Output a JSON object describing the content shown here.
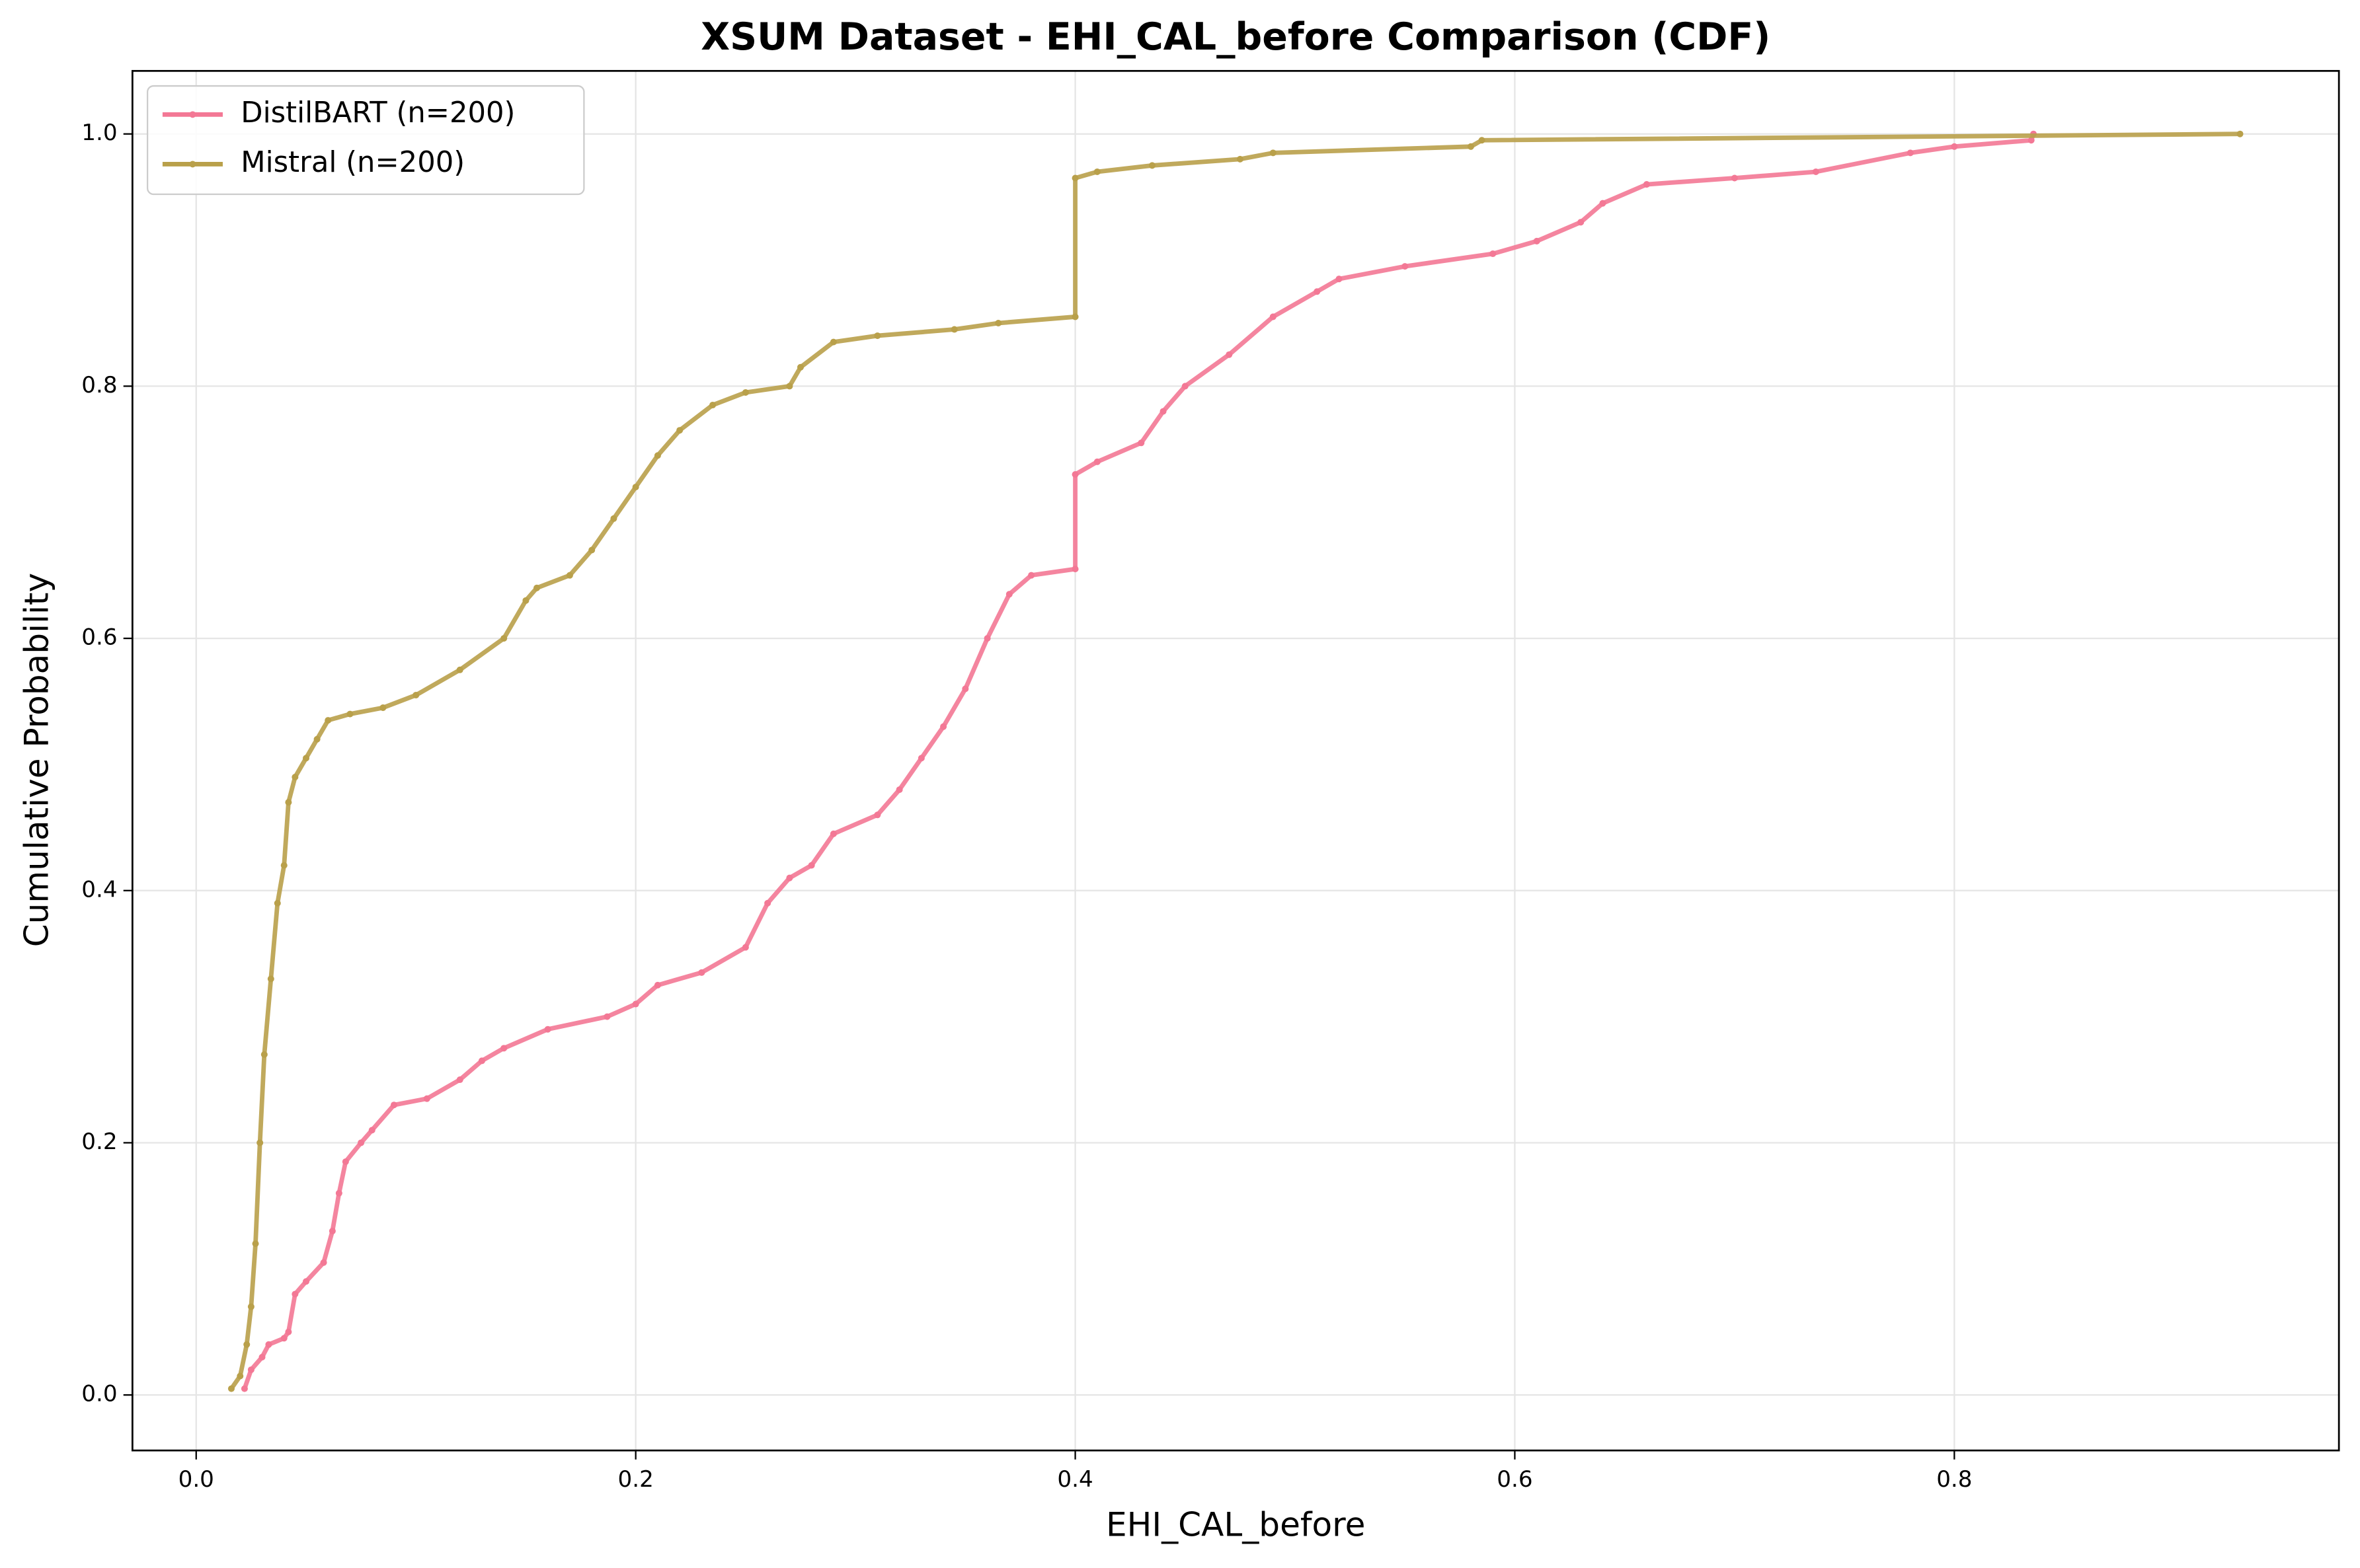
{
  "chart_data": {
    "type": "line",
    "title": "XSUM Dataset - EHI_CAL_before Comparison (CDF)",
    "xlabel": "EHI_CAL_before",
    "ylabel": "Cumulative Probability",
    "xlim": [
      -0.029,
      0.975
    ],
    "ylim": [
      -0.044,
      1.05
    ],
    "xticks": [
      {
        "value": 0,
        "label": "0.0"
      },
      0.2,
      0.4,
      0.6,
      0.8
    ],
    "yticks": [
      {
        "value": 0,
        "label": "0.0"
      },
      0.2,
      0.4,
      0.6,
      0.8,
      {
        "value": 1,
        "label": "1.0"
      }
    ],
    "grid": true,
    "legend": "upper left",
    "series": [
      {
        "name": "DistilBART (n=200)",
        "color": "#f37895",
        "x": [
          0.022,
          0.025,
          0.03,
          0.033,
          0.04,
          0.042,
          0.045,
          0.05,
          0.058,
          0.062,
          0.065,
          0.068,
          0.075,
          0.08,
          0.09,
          0.105,
          0.12,
          0.13,
          0.14,
          0.16,
          0.187,
          0.2,
          0.21,
          0.23,
          0.25,
          0.26,
          0.27,
          0.28,
          0.29,
          0.31,
          0.32,
          0.33,
          0.34,
          0.35,
          0.36,
          0.37,
          0.38,
          0.4,
          0.4,
          0.41,
          0.43,
          0.44,
          0.45,
          0.47,
          0.49,
          0.51,
          0.52,
          0.55,
          0.59,
          0.61,
          0.63,
          0.64,
          0.66,
          0.7,
          0.737,
          0.78,
          0.8,
          0.835,
          0.836
        ],
        "values": [
          0.005,
          0.02,
          0.03,
          0.04,
          0.045,
          0.05,
          0.08,
          0.09,
          0.105,
          0.13,
          0.16,
          0.185,
          0.2,
          0.21,
          0.23,
          0.235,
          0.25,
          0.265,
          0.275,
          0.29,
          0.3,
          0.31,
          0.325,
          0.335,
          0.355,
          0.39,
          0.41,
          0.42,
          0.445,
          0.46,
          0.48,
          0.505,
          0.53,
          0.56,
          0.6,
          0.635,
          0.65,
          0.655,
          0.73,
          0.74,
          0.755,
          0.78,
          0.8,
          0.825,
          0.855,
          0.875,
          0.885,
          0.895,
          0.905,
          0.915,
          0.93,
          0.945,
          0.96,
          0.965,
          0.97,
          0.985,
          0.99,
          0.995,
          1.0
        ]
      },
      {
        "name": "Mistral (n=200)",
        "color": "#b9a04a",
        "x": [
          0.016,
          0.02,
          0.023,
          0.025,
          0.027,
          0.029,
          0.031,
          0.034,
          0.037,
          0.04,
          0.042,
          0.045,
          0.05,
          0.055,
          0.06,
          0.07,
          0.085,
          0.1,
          0.12,
          0.14,
          0.15,
          0.155,
          0.17,
          0.18,
          0.19,
          0.2,
          0.21,
          0.22,
          0.235,
          0.25,
          0.27,
          0.275,
          0.29,
          0.31,
          0.345,
          0.365,
          0.4,
          0.4,
          0.41,
          0.435,
          0.475,
          0.49,
          0.58,
          0.585,
          0.93
        ],
        "values": [
          0.005,
          0.015,
          0.04,
          0.07,
          0.12,
          0.2,
          0.27,
          0.33,
          0.39,
          0.42,
          0.47,
          0.49,
          0.505,
          0.52,
          0.535,
          0.54,
          0.545,
          0.555,
          0.575,
          0.6,
          0.63,
          0.64,
          0.65,
          0.67,
          0.695,
          0.72,
          0.745,
          0.765,
          0.785,
          0.795,
          0.8,
          0.815,
          0.835,
          0.84,
          0.845,
          0.85,
          0.855,
          0.965,
          0.97,
          0.975,
          0.98,
          0.985,
          0.99,
          0.995,
          1.0
        ]
      }
    ]
  }
}
